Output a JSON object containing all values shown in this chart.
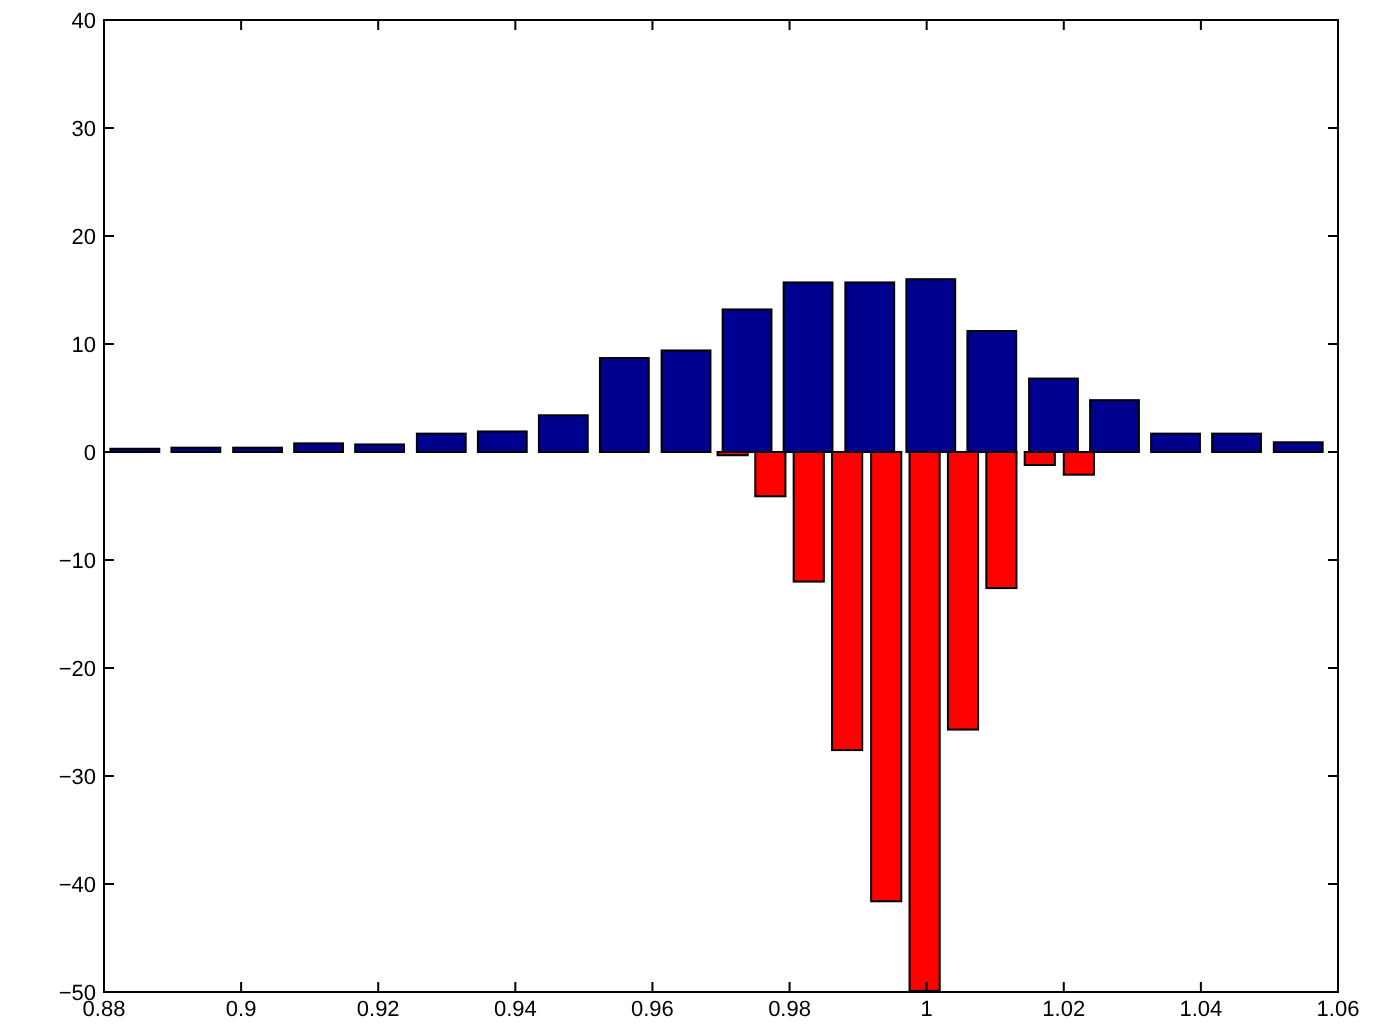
{
  "chart_data": {
    "type": "bar",
    "xlim": [
      0.88,
      1.06
    ],
    "ylim": [
      -50,
      40
    ],
    "xticks": [
      0.88,
      0.9,
      0.92,
      0.94,
      0.96,
      0.98,
      1,
      1.02,
      1.04,
      1.06
    ],
    "yticks": [
      {
        "value": -50,
        "label": "−50"
      },
      {
        "value": -40,
        "label": "−40"
      },
      {
        "value": -30,
        "label": "−30"
      },
      {
        "value": -20,
        "label": "−20"
      },
      {
        "value": -10,
        "label": "−10"
      },
      0,
      10,
      20,
      30,
      40
    ],
    "series": [
      {
        "color": "#00008f",
        "x": [
          0.8845,
          0.8934,
          0.9024,
          0.9113,
          0.9202,
          0.9292,
          0.9381,
          0.947,
          0.9559,
          0.9649,
          0.9738,
          0.9827,
          0.9917,
          1.0006,
          1.0095,
          1.0185,
          1.0274,
          1.0363,
          1.0452,
          1.0542
        ],
        "values": [
          0.3,
          0.4,
          0.4,
          0.8,
          0.7,
          1.7,
          1.9,
          3.4,
          8.7,
          9.4,
          13.2,
          15.7,
          15.7,
          16.0,
          11.2,
          6.8,
          4.8,
          1.7,
          1.7,
          0.9
        ]
      },
      {
        "color": "#ff0000",
        "x": [
          0.9717,
          0.9772,
          0.9828,
          0.9884,
          0.9941,
          0.9997,
          1.0053,
          1.0109,
          1.0165,
          1.0222
        ],
        "values": [
          -0.3,
          -4.1,
          -12.0,
          -27.6,
          -41.6,
          -49.9,
          -25.7,
          -12.6,
          -1.2,
          -2.1
        ]
      }
    ]
  }
}
